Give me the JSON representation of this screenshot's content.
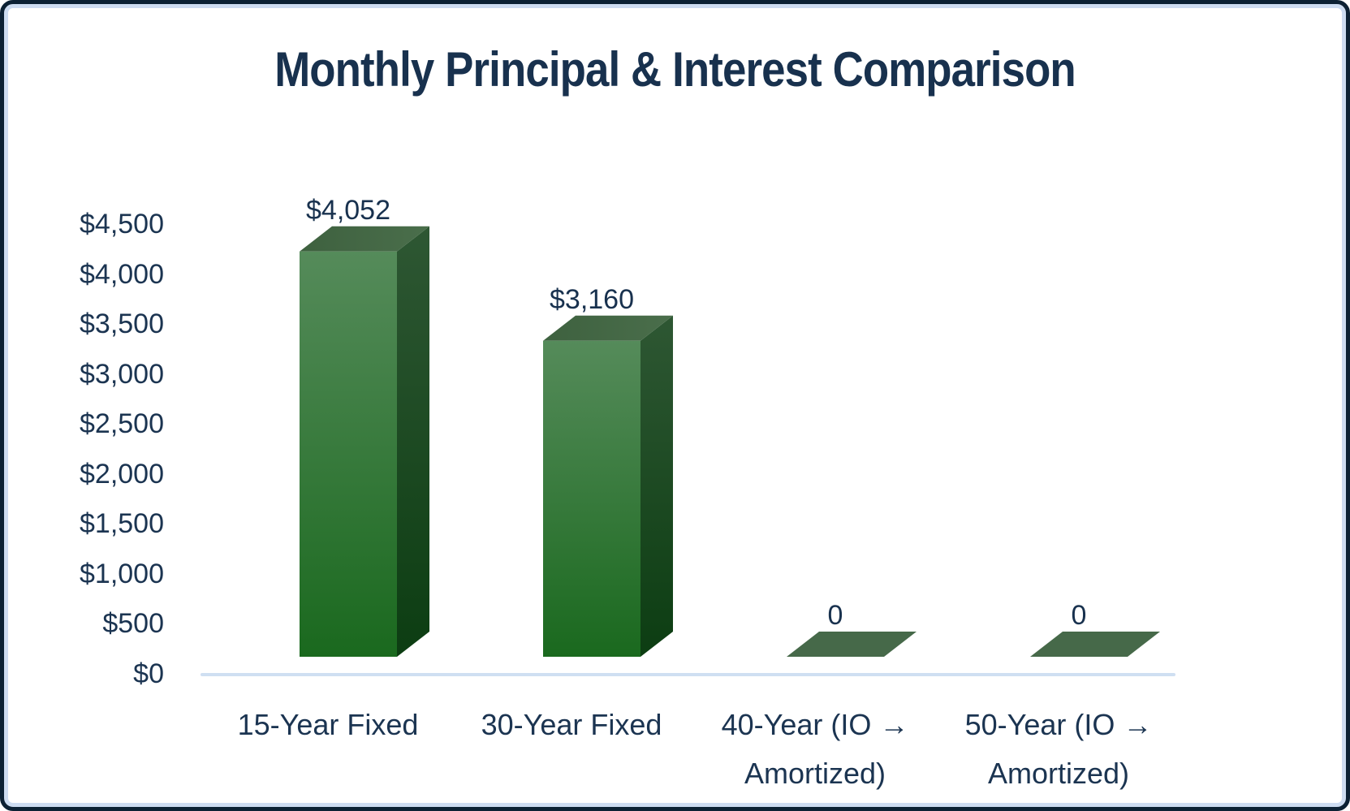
{
  "title": "Monthly Principal & Interest Comparison",
  "chart_data": {
    "type": "bar",
    "style": "3d-box-bars",
    "title": "Monthly Principal & Interest Comparison",
    "categories": [
      "15-Year Fixed",
      "30-Year Fixed",
      "40-Year (IO → Amortized)",
      "50-Year (IO → Amortized)"
    ],
    "values": [
      4052,
      3160,
      0,
      0
    ],
    "value_labels": [
      "$4,052",
      "$3,160",
      "0",
      "0"
    ],
    "xlabel": "",
    "ylabel": "",
    "ylim": [
      0,
      4500
    ],
    "ytick_step": 500,
    "ytick_labels": [
      "$4,500",
      "$4,000",
      "$3,500",
      "$3,000",
      "$2,500",
      "$2,000",
      "$1,500",
      "$1,000",
      "$500",
      "$0"
    ],
    "grid": false,
    "legend": null
  },
  "category_label_lines": [
    [
      "15-Year Fixed"
    ],
    [
      "30-Year Fixed"
    ],
    [
      "40-Year (IO →",
      "Amortized)"
    ],
    [
      "50-Year (IO →",
      "Amortized)"
    ]
  ],
  "colors": {
    "text_navy": "#1b3451",
    "title_navy": "#18314e",
    "bar_front_top": "#558b5a",
    "bar_front_bottom": "#1a691e",
    "bar_side_top": "#2e5733",
    "bar_side_bottom": "#0c3d12",
    "bar_top_near": "#3e613f",
    "bar_top_far": "#4a6e4b",
    "zero_face": "#466949",
    "axis_line": "#cfdff2",
    "card_border_outer": "#0c2134",
    "card_border_inner": "#cddcf1",
    "background": "#ffffff"
  }
}
